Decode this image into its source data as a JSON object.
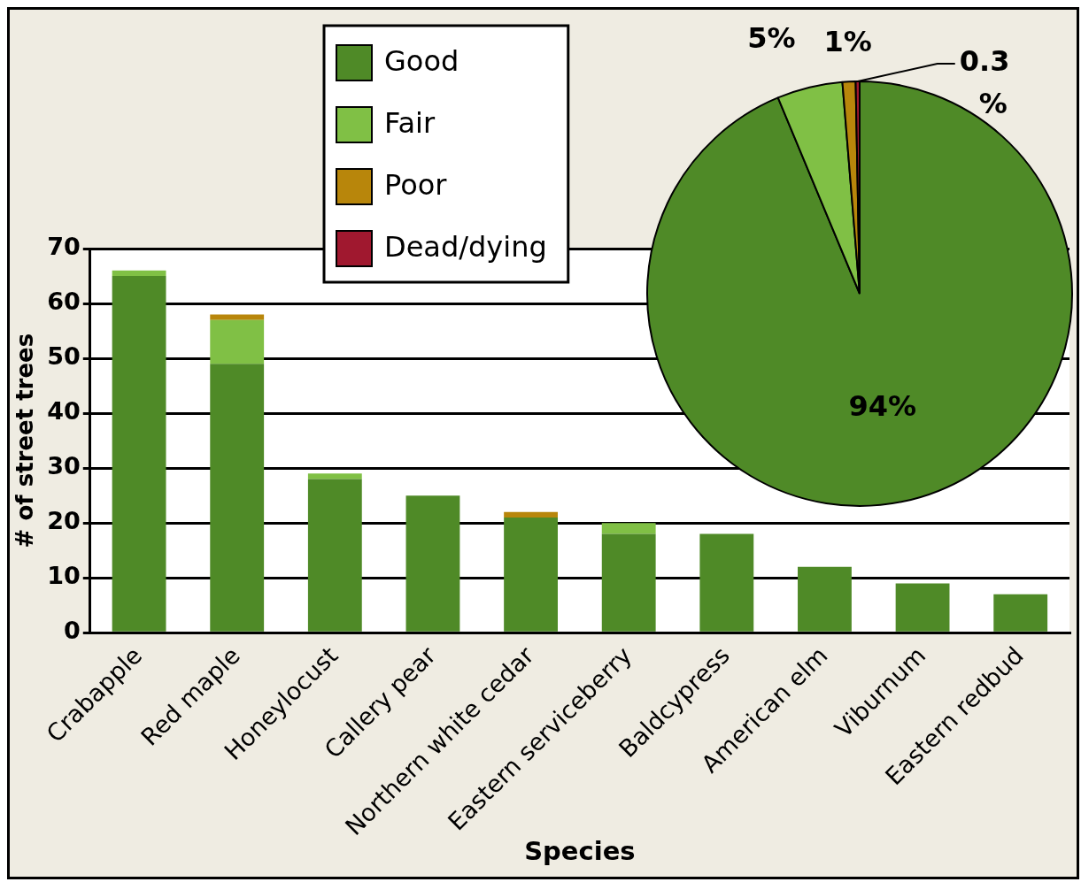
{
  "chart_data": [
    {
      "type": "bar",
      "stacked": true,
      "xlabel": "Species",
      "ylabel": "# of street trees",
      "categories": [
        "Crabapple",
        "Red maple",
        "Honeylocust",
        "Callery pear",
        "Northern white cedar",
        "Eastern serviceberry",
        "Baldcypress",
        "American elm",
        "Viburnum",
        "Eastern redbud"
      ],
      "series": [
        {
          "name": "Good",
          "color": "#4f8a27",
          "values": [
            65,
            49,
            28,
            25,
            21,
            18,
            18,
            12,
            9,
            7
          ]
        },
        {
          "name": "Fair",
          "color": "#80c045",
          "values": [
            1,
            8,
            1,
            0,
            0,
            2,
            0,
            0,
            0,
            0
          ]
        },
        {
          "name": "Poor",
          "color": "#b8860b",
          "values": [
            0,
            1,
            0,
            0,
            1,
            0,
            0,
            0,
            0,
            0
          ]
        },
        {
          "name": "Dead/dying",
          "color": "#a0182f",
          "values": [
            0,
            0,
            0,
            0,
            0,
            0,
            0,
            0,
            0,
            0
          ]
        }
      ],
      "ylim": [
        0,
        70
      ],
      "yticks": [
        0,
        10,
        20,
        30,
        40,
        50,
        60,
        70
      ],
      "grid": "y",
      "legend": "top"
    },
    {
      "type": "pie",
      "categories": [
        null,
        null,
        null,
        null
      ],
      "values": [
        94,
        5,
        1,
        0.3
      ],
      "colors": [
        "#4f8a27",
        "#80c045",
        "#b8860b",
        "#a0182f"
      ],
      "value_labels": [
        "94%",
        "5%",
        "1%",
        "0.3 %"
      ]
    }
  ]
}
